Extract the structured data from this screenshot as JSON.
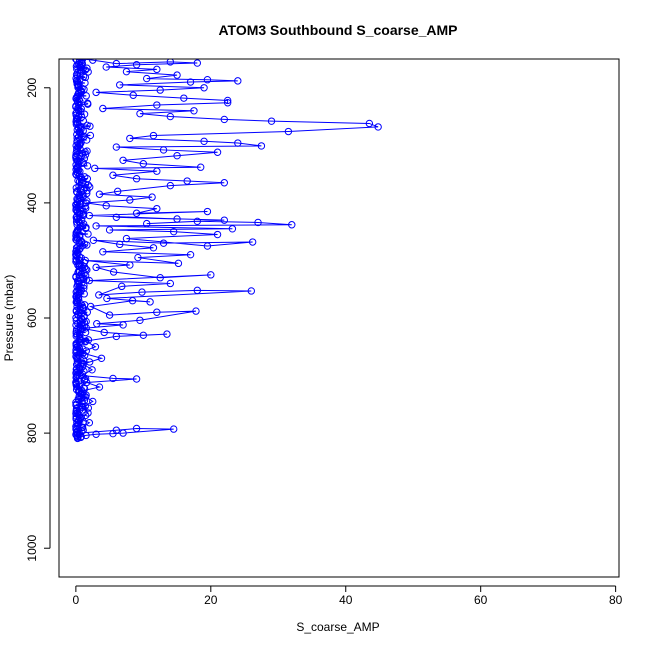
{
  "chart_data": {
    "type": "scatter",
    "title": "ATOM3 Southbound S_coarse_AMP",
    "xlabel": "S_coarse_AMP",
    "ylabel": "Pressure (mbar)",
    "xlim": [
      -2.5,
      80.5
    ],
    "ylim": [
      1050,
      150
    ],
    "y_reversed": true,
    "x_ticks": [
      "0",
      "20",
      "40",
      "60",
      "80"
    ],
    "y_ticks": [
      "200",
      "400",
      "600",
      "800",
      "1000"
    ],
    "grid": false,
    "legend": "none",
    "point_style": "open-circle",
    "connect_points": true,
    "colors": {
      "series": "#0000ff",
      "axis": "#000000",
      "background": "#ffffff"
    },
    "series": [
      {
        "values": [
          [
            0.3,
            808
          ],
          [
            0.8,
            806
          ],
          [
            1.5,
            804
          ],
          [
            3.0,
            802
          ],
          [
            5.5,
            801
          ],
          [
            7.0,
            800
          ],
          [
            14.5,
            793
          ],
          [
            9.0,
            792
          ],
          [
            6.0,
            795
          ],
          [
            0.5,
            800
          ],
          [
            1.0,
            790
          ],
          [
            2.0,
            782
          ],
          [
            0.6,
            775
          ],
          [
            1.8,
            765
          ],
          [
            0.9,
            755
          ],
          [
            2.5,
            745
          ],
          [
            1.2,
            735
          ],
          [
            0.4,
            728
          ],
          [
            3.5,
            720
          ],
          [
            1.6,
            712
          ],
          [
            9.0,
            706
          ],
          [
            5.5,
            705
          ],
          [
            0.8,
            700
          ],
          [
            2.4,
            690
          ],
          [
            1.1,
            680
          ],
          [
            3.8,
            670
          ],
          [
            0.7,
            660
          ],
          [
            2.9,
            650
          ],
          [
            1.5,
            640
          ],
          [
            6.0,
            632
          ],
          [
            13.5,
            628
          ],
          [
            10.0,
            630
          ],
          [
            4.2,
            625
          ],
          [
            1.0,
            618
          ],
          [
            7.0,
            612
          ],
          [
            3.1,
            610
          ],
          [
            9.5,
            604
          ],
          [
            17.8,
            588
          ],
          [
            12.0,
            590
          ],
          [
            5.0,
            595
          ],
          [
            2.2,
            580
          ],
          [
            8.4,
            570
          ],
          [
            11.0,
            572
          ],
          [
            4.6,
            566
          ],
          [
            26.0,
            553
          ],
          [
            18.0,
            552
          ],
          [
            9.8,
            555
          ],
          [
            3.4,
            560
          ],
          [
            6.8,
            545
          ],
          [
            14.0,
            540
          ],
          [
            2.0,
            535
          ],
          [
            20.0,
            525
          ],
          [
            12.5,
            530
          ],
          [
            5.6,
            520
          ],
          [
            3.0,
            512
          ],
          [
            8.0,
            508
          ],
          [
            1.4,
            500
          ],
          [
            15.2,
            505
          ],
          [
            9.2,
            495
          ],
          [
            17.0,
            490
          ],
          [
            4.0,
            485
          ],
          [
            11.5,
            478
          ],
          [
            6.5,
            472
          ],
          [
            2.6,
            465
          ],
          [
            13.0,
            470
          ],
          [
            26.2,
            468
          ],
          [
            19.5,
            475
          ],
          [
            7.5,
            462
          ],
          [
            21.0,
            455
          ],
          [
            14.5,
            450
          ],
          [
            5.0,
            447
          ],
          [
            23.2,
            445
          ],
          [
            3.0,
            440
          ],
          [
            32.0,
            438
          ],
          [
            27.0,
            434
          ],
          [
            18.0,
            432
          ],
          [
            10.5,
            436
          ],
          [
            22.0,
            430
          ],
          [
            6.0,
            425
          ],
          [
            15.0,
            428
          ],
          [
            2.0,
            422
          ],
          [
            19.5,
            415
          ],
          [
            9.0,
            418
          ],
          [
            12.0,
            410
          ],
          [
            4.5,
            405
          ],
          [
            1.5,
            400
          ],
          [
            8.0,
            395
          ],
          [
            11.3,
            390
          ],
          [
            3.5,
            385
          ],
          [
            6.2,
            380
          ],
          [
            14.0,
            370
          ],
          [
            22.0,
            365
          ],
          [
            16.5,
            362
          ],
          [
            9.0,
            358
          ],
          [
            5.5,
            352
          ],
          [
            12.0,
            345
          ],
          [
            2.8,
            340
          ],
          [
            18.5,
            338
          ],
          [
            10.0,
            332
          ],
          [
            7.0,
            326
          ],
          [
            15.0,
            318
          ],
          [
            21.0,
            312
          ],
          [
            13.0,
            308
          ],
          [
            6.0,
            303
          ],
          [
            27.5,
            301
          ],
          [
            24.0,
            296
          ],
          [
            19.0,
            293
          ],
          [
            8.0,
            288
          ],
          [
            11.5,
            283
          ],
          [
            31.5,
            276
          ],
          [
            44.8,
            268
          ],
          [
            43.5,
            262
          ],
          [
            29.0,
            258
          ],
          [
            22.0,
            255
          ],
          [
            14.0,
            250
          ],
          [
            9.5,
            245
          ],
          [
            17.5,
            240
          ],
          [
            4.0,
            236
          ],
          [
            12.0,
            230
          ],
          [
            22.5,
            226
          ],
          [
            22.5,
            222
          ],
          [
            16.0,
            218
          ],
          [
            8.5,
            213
          ],
          [
            3.0,
            208
          ],
          [
            12.5,
            204
          ],
          [
            19.0,
            200
          ],
          [
            6.5,
            195
          ],
          [
            17.0,
            190
          ],
          [
            24.0,
            188
          ],
          [
            19.5,
            186
          ],
          [
            10.5,
            184
          ],
          [
            15.0,
            178
          ],
          [
            7.5,
            172
          ],
          [
            12.0,
            168
          ],
          [
            4.5,
            164
          ],
          [
            9.0,
            160
          ],
          [
            18.0,
            157
          ],
          [
            14.0,
            155
          ],
          [
            6.0,
            158
          ],
          [
            2.5,
            152
          ],
          [
            1.0,
            150
          ],
          [
            0.2,
            160
          ],
          [
            0.5,
            300
          ],
          [
            0.1,
            500
          ],
          [
            0.3,
            650
          ]
        ]
      }
    ]
  }
}
